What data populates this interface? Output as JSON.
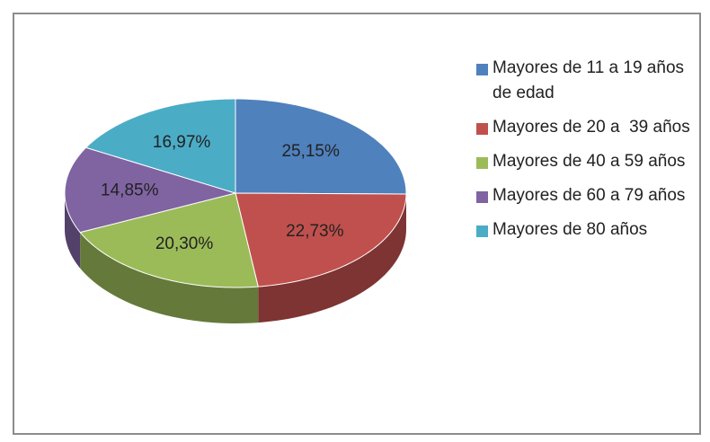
{
  "chart_data": {
    "type": "pie",
    "categories": [
      "Mayores de 11 a 19 años  de edad",
      "Mayores de 20 a  39 años",
      "Mayores de 40 a 59 años",
      "Mayores de 60 a 79 años",
      "Mayores de 80 años"
    ],
    "values": [
      25.15,
      22.73,
      20.3,
      14.85,
      16.97
    ],
    "value_labels": [
      "25,15%",
      "22,73%",
      "20,30%",
      "14,85%",
      "16,97%"
    ],
    "colors": [
      "#4f81bd",
      "#c0504d",
      "#9bbb59",
      "#8064a2",
      "#4bacc6"
    ],
    "legend": "right"
  }
}
